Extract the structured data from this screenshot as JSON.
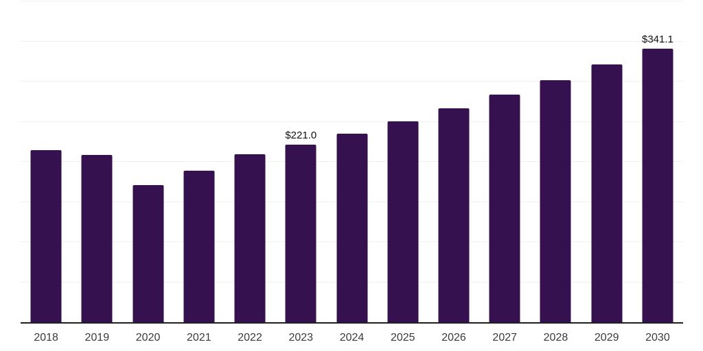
{
  "chart_data": {
    "type": "bar",
    "title": "",
    "xlabel": "",
    "ylabel": "",
    "categories": [
      "2018",
      "2019",
      "2020",
      "2021",
      "2022",
      "2023",
      "2024",
      "2025",
      "2026",
      "2027",
      "2028",
      "2029",
      "2030"
    ],
    "values": [
      214.4,
      208.3,
      171.2,
      188.5,
      209.8,
      221.0,
      235.2,
      250.3,
      266.4,
      283.5,
      301.7,
      321.1,
      341.1
    ],
    "annotations": [
      {
        "category": "2023",
        "text": "$221.0"
      },
      {
        "category": "2030",
        "text": "$341.1"
      }
    ],
    "ylim": [
      0,
      400
    ],
    "grid_step": 50,
    "grid": "horizontal-only",
    "legend_position": "none",
    "y_tick_labels_visible": false,
    "colors": {
      "bar": "#36114f",
      "gridline": "#f0f0f0",
      "axis_line": "#1f1f1f",
      "x_tick_label": "#3a3a3a",
      "data_label": "#111111",
      "background": "#ffffff"
    }
  }
}
